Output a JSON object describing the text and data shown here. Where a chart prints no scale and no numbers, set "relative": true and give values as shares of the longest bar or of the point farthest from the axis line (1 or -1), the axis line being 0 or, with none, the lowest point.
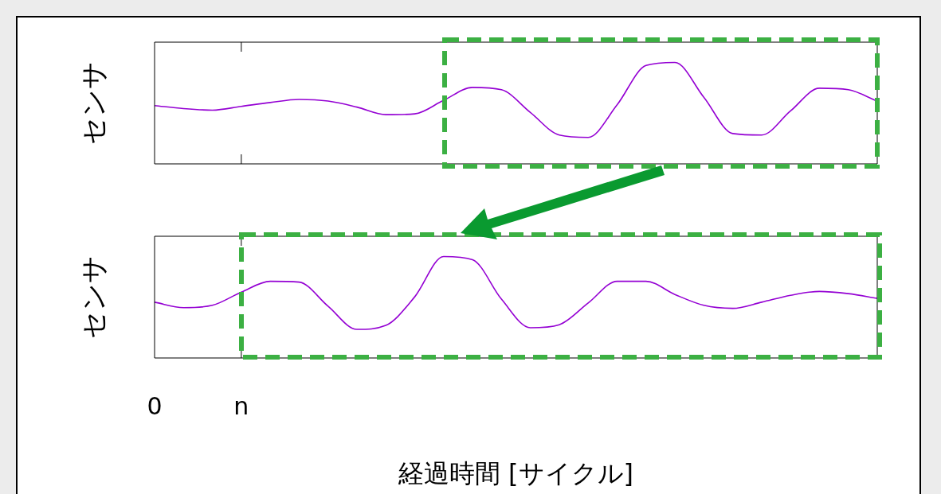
{
  "chart_data": [
    {
      "type": "line",
      "relative": true,
      "ylabel": "センサ",
      "marker": "none",
      "tick_labels": false,
      "categories": [
        null,
        null,
        null,
        null,
        null,
        null,
        null,
        null,
        null,
        null,
        null,
        null,
        null,
        null,
        null,
        null,
        null,
        null,
        null,
        null,
        null,
        null,
        null,
        null,
        null,
        null
      ],
      "series": [
        {
          "color": "#9400d3",
          "values": [
            0.575,
            0.545,
            0.53,
            0.567,
            0.605,
            0.635,
            0.619,
            0.56,
            0.485,
            0.493,
            0.627,
            0.754,
            0.731,
            0.507,
            0.284,
            0.261,
            0.582,
            0.97,
            1,
            0.657,
            0.299,
            0.284,
            0.522,
            0.746,
            0.731,
            0.619
          ]
        }
      ]
    },
    {
      "type": "line",
      "relative": true,
      "ylabel": "センサ",
      "xlabel": "経過時間 [サイクル]",
      "marker": "none",
      "tick_labels": "x",
      "categories": [
        "0",
        null,
        null,
        "n",
        null,
        null,
        null,
        null,
        null,
        null,
        null,
        null,
        null,
        null,
        null,
        null,
        null,
        null,
        null,
        null,
        null,
        null,
        null,
        null,
        null,
        null
      ],
      "series": [
        {
          "color": "#9400d3",
          "values": [
            0.55,
            0.496,
            0.519,
            0.649,
            0.756,
            0.748,
            0.511,
            0.282,
            0.321,
            0.603,
            1,
            0.969,
            0.58,
            0.298,
            0.328,
            0.542,
            0.756,
            0.756,
            0.626,
            0.519,
            0.489,
            0.55,
            0.618,
            0.656,
            0.634,
            0.588
          ]
        }
      ]
    }
  ]
}
